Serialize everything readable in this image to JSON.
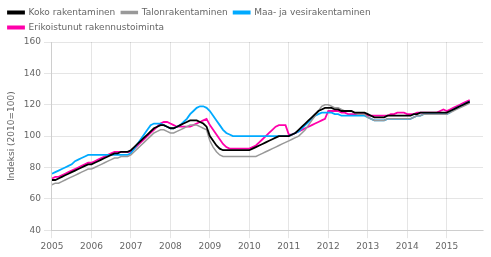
{
  "chart_data": {
    "type": "line",
    "y_label": "Indeksi (2010=100)",
    "xlim": [
      2005.0,
      2015.92
    ],
    "ylim": [
      40,
      160
    ],
    "xticks": [
      2005,
      2006,
      2007,
      2008,
      2009,
      2010,
      2011,
      2012,
      2013,
      2014,
      2015
    ],
    "yticks": [
      40,
      60,
      80,
      100,
      120,
      140,
      160
    ],
    "grid": true,
    "legend": "upper left",
    "x": [
      2005.0,
      2005.0833333333333,
      2005.1666666666667,
      2005.25,
      2005.3333333333333,
      2005.4166666666667,
      2005.5,
      2005.5833333333333,
      2005.6666666666667,
      2005.75,
      2005.8333333333333,
      2005.9166666666667,
      2006.0,
      2006.0833333333333,
      2006.1666666666667,
      2006.25,
      2006.3333333333333,
      2006.4166666666667,
      2006.5,
      2006.5833333333333,
      2006.6666666666667,
      2006.75,
      2006.8333333333333,
      2006.9166666666667,
      2007.0,
      2007.0833333333333,
      2007.1666666666667,
      2007.25,
      2007.3333333333333,
      2007.4166666666667,
      2007.5,
      2007.5833333333333,
      2007.6666666666667,
      2007.75,
      2007.8333333333333,
      2007.9166666666667,
      2008.0,
      2008.0833333333333,
      2008.1666666666667,
      2008.25,
      2008.3333333333333,
      2008.4166666666667,
      2008.5,
      2008.5833333333333,
      2008.6666666666667,
      2008.75,
      2008.8333333333333,
      2008.9166666666667,
      2009.0,
      2009.0833333333333,
      2009.1666666666667,
      2009.25,
      2009.3333333333333,
      2009.4166666666667,
      2009.5,
      2009.5833333333333,
      2009.6666666666667,
      2009.75,
      2009.8333333333333,
      2009.9166666666667,
      2010.0,
      2010.0833333333333,
      2010.1666666666667,
      2010.25,
      2010.3333333333333,
      2010.4166666666667,
      2010.5,
      2010.5833333333333,
      2010.6666666666667,
      2010.75,
      2010.8333333333333,
      2010.9166666666667,
      2011.0,
      2011.0833333333333,
      2011.1666666666667,
      2011.25,
      2011.3333333333333,
      2011.4166666666667,
      2011.5,
      2011.5833333333333,
      2011.6666666666667,
      2011.75,
      2011.8333333333333,
      2011.9166666666667,
      2012.0,
      2012.0833333333333,
      2012.1666666666667,
      2012.25,
      2012.3333333333333,
      2012.4166666666667,
      2012.5,
      2012.5833333333333,
      2012.6666666666667,
      2012.75,
      2012.8333333333333,
      2012.9166666666667,
      2013.0,
      2013.0833333333333,
      2013.1666666666667,
      2013.25,
      2013.3333333333333,
      2013.4166666666667,
      2013.5,
      2013.5833333333333,
      2013.6666666666667,
      2013.75,
      2013.8333333333333,
      2013.9166666666667,
      2014.0,
      2014.0833333333333,
      2014.1666666666667,
      2014.25,
      2014.3333333333333,
      2014.4166666666667,
      2014.5,
      2014.5833333333333,
      2014.6666666666667,
      2014.75,
      2014.8333333333333,
      2014.9166666666667,
      2015.0,
      2015.0833333333333,
      2015.1666666666667,
      2015.25,
      2015.3333333333333,
      2015.4166666666667,
      2015.5,
      2015.5833333333333
    ],
    "series": [
      {
        "name": "Koko rakentaminen",
        "color": "#000000",
        "values": [
          72,
          72,
          73,
          74,
          75,
          76,
          77,
          78,
          79,
          80,
          81,
          82,
          82,
          83,
          84,
          85,
          86,
          87,
          88,
          89,
          89,
          90,
          90,
          90,
          91,
          93,
          95,
          97,
          99,
          101,
          103,
          105,
          106,
          107,
          107,
          106,
          105,
          105,
          106,
          107,
          108,
          109,
          110,
          110,
          110,
          109,
          108,
          106,
          100,
          97,
          94,
          92,
          91,
          91,
          91,
          91,
          91,
          91,
          91,
          91,
          91,
          92,
          93,
          94,
          95,
          96,
          97,
          98,
          99,
          100,
          100,
          100,
          100,
          101,
          102,
          104,
          106,
          108,
          110,
          112,
          114,
          116,
          117,
          118,
          118,
          118,
          117,
          117,
          116,
          116,
          116,
          116,
          115,
          115,
          115,
          115,
          114,
          113,
          112,
          112,
          112,
          112,
          113,
          113,
          113,
          113,
          113,
          113,
          113,
          113,
          114,
          114,
          115,
          115,
          115,
          115,
          115,
          115,
          115,
          115,
          115,
          116,
          117,
          118,
          119,
          120,
          121,
          122
        ]
      },
      {
        "name": "Talonrakentaminen",
        "color": "#999999",
        "values": [
          69,
          70,
          70,
          71,
          72,
          73,
          74,
          75,
          76,
          77,
          78,
          79,
          79,
          80,
          81,
          82,
          83,
          84,
          85,
          86,
          86,
          87,
          87,
          87,
          88,
          90,
          92,
          94,
          96,
          98,
          100,
          102,
          103,
          104,
          104,
          103,
          102,
          102,
          103,
          104,
          105,
          106,
          107,
          107,
          107,
          106,
          105,
          104,
          97,
          93,
          90,
          88,
          87,
          87,
          87,
          87,
          87,
          87,
          87,
          87,
          87,
          87,
          87,
          88,
          89,
          90,
          91,
          92,
          93,
          94,
          95,
          96,
          97,
          98,
          99,
          100,
          102,
          104,
          107,
          110,
          113,
          116,
          119,
          120,
          120,
          119,
          118,
          118,
          117,
          116,
          116,
          116,
          115,
          114,
          114,
          114,
          112,
          111,
          110,
          110,
          110,
          110,
          111,
          111,
          111,
          111,
          111,
          111,
          111,
          111,
          112,
          113,
          113,
          114,
          114,
          114,
          114,
          114,
          114,
          114,
          114,
          115,
          116,
          117,
          118,
          119,
          120,
          121
        ]
      },
      {
        "name": "Maa- ja vesirakentaminen",
        "color": "#00aaff",
        "values": [
          76,
          77,
          78,
          79,
          80,
          81,
          82,
          84,
          85,
          86,
          87,
          88,
          88,
          88,
          88,
          88,
          88,
          88,
          88,
          88,
          88,
          88,
          88,
          88,
          89,
          92,
          95,
          98,
          101,
          104,
          107,
          108,
          108,
          108,
          107,
          106,
          105,
          105,
          106,
          107,
          109,
          111,
          114,
          116,
          118,
          119,
          119,
          118,
          116,
          113,
          110,
          107,
          104,
          102,
          101,
          100,
          100,
          100,
          100,
          100,
          100,
          100,
          100,
          100,
          100,
          100,
          100,
          100,
          100,
          100,
          100,
          100,
          100,
          101,
          102,
          103,
          105,
          107,
          109,
          111,
          113,
          114,
          115,
          115,
          115,
          115,
          114,
          114,
          113,
          113,
          113,
          113,
          113,
          113,
          113,
          113,
          112,
          111,
          110,
          110,
          110,
          110,
          111,
          111,
          111,
          111,
          111,
          111,
          111,
          111,
          112,
          113,
          113,
          114,
          114,
          114,
          114,
          114,
          114,
          114,
          114,
          115,
          117,
          118,
          119,
          120,
          121,
          122
        ]
      },
      {
        "name": "Erikoistunut rakennustoiminta",
        "color": "#ff00aa",
        "values": [
          73,
          74,
          74,
          75,
          76,
          77,
          78,
          79,
          80,
          81,
          82,
          83,
          83,
          84,
          85,
          86,
          87,
          88,
          89,
          90,
          90,
          90,
          90,
          90,
          90,
          92,
          94,
          96,
          98,
          100,
          102,
          104,
          106,
          108,
          109,
          109,
          108,
          107,
          106,
          106,
          106,
          106,
          106,
          107,
          108,
          109,
          110,
          111,
          107,
          104,
          101,
          98,
          95,
          93,
          92,
          92,
          92,
          92,
          92,
          92,
          92,
          93,
          94,
          96,
          98,
          100,
          102,
          104,
          106,
          107,
          107,
          107,
          101,
          101,
          102,
          103,
          104,
          105,
          106,
          107,
          108,
          109,
          110,
          111,
          116,
          116,
          116,
          116,
          115,
          115,
          114,
          114,
          114,
          114,
          114,
          114,
          113,
          113,
          113,
          113,
          113,
          113,
          113,
          114,
          114,
          115,
          115,
          115,
          114,
          114,
          114,
          115,
          115,
          115,
          115,
          115,
          115,
          115,
          116,
          117,
          116,
          117,
          118,
          119,
          120,
          121,
          122,
          123
        ]
      }
    ]
  }
}
